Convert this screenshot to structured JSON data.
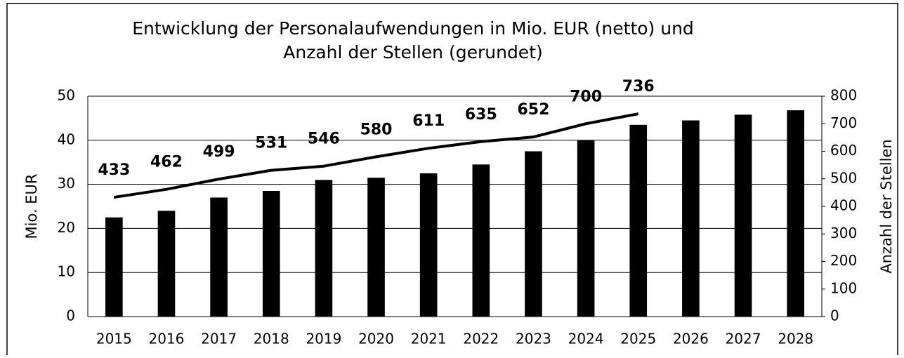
{
  "chart_data": {
    "type": "bar",
    "title": [
      "Entwicklung der Personalaufwendungen in Mio. EUR (netto) und",
      "Anzahl der Stellen (gerundet)"
    ],
    "y_label": "Mio. EUR",
    "y2_label": "Anzahl der Stellen",
    "categories": [
      "2015",
      "2016",
      "2017",
      "2018",
      "2019",
      "2020",
      "2021",
      "2022",
      "2023",
      "2024",
      "2025",
      "2026",
      "2027",
      "2028"
    ],
    "series": [
      {
        "name": "Personalaufwendungen",
        "type": "bar",
        "color": "#000000",
        "values": [
          22.5,
          24,
          27,
          28.5,
          31,
          31.5,
          32.5,
          34.5,
          37.5,
          40,
          43.5,
          44.5,
          45.8,
          46.8
        ]
      },
      {
        "name": "Stellen",
        "type": "line",
        "axis": "y2",
        "color": "#000000",
        "values": [
          433,
          462,
          499,
          531,
          546,
          580,
          611,
          635,
          652,
          700,
          736,
          null,
          null,
          null
        ]
      }
    ],
    "ylim": [
      0,
      50
    ],
    "yticks": [
      0,
      10,
      20,
      30,
      40,
      50
    ],
    "y2lim": [
      0,
      800
    ],
    "y2ticks": [
      0,
      100,
      200,
      300,
      400,
      500,
      600,
      700,
      800
    ],
    "grid": true
  }
}
